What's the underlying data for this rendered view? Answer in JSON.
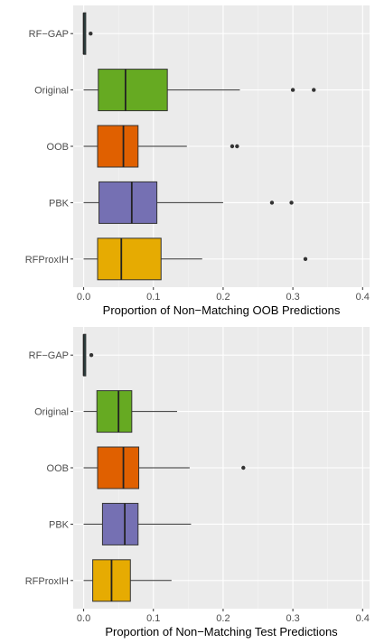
{
  "colors": {
    "panel_bg": "#ebebeb",
    "grid_major": "#ffffff",
    "grid_minor": "#f5f5f5",
    "whisker": "#333333",
    "outlier": "#333333",
    "box_outline": "#333333"
  },
  "chart_data": [
    {
      "type": "boxplot",
      "orientation": "horizontal",
      "xlabel": "Proportion of Non−Matching OOB Predictions",
      "xlim": [
        -0.015,
        0.41
      ],
      "xticks": [
        0,
        0.1,
        0.2,
        0.3,
        0.4
      ],
      "xtick_labels": [
        "0.0",
        "0.1",
        "0.2",
        "0.3",
        "0.4"
      ],
      "grid": true,
      "legend": "none",
      "series": [
        {
          "name": "RF−GAP",
          "color": "#2f4f4f",
          "whisker_low": 0.0,
          "q1": 0.0,
          "median": 0.0,
          "q3": 0.003,
          "whisker_high": 0.003,
          "outliers": [
            0.01
          ]
        },
        {
          "name": "Original",
          "color": "#66aa22",
          "whisker_low": 0.0,
          "q1": 0.021,
          "median": 0.06,
          "q3": 0.12,
          "whisker_high": 0.224,
          "outliers": [
            0.3,
            0.33
          ]
        },
        {
          "name": "OOB",
          "color": "#e06000",
          "whisker_low": 0.0,
          "q1": 0.02,
          "median": 0.057,
          "q3": 0.078,
          "whisker_high": 0.148,
          "outliers": [
            0.213,
            0.22
          ]
        },
        {
          "name": "PBK",
          "color": "#7570b3",
          "whisker_low": 0.0,
          "q1": 0.022,
          "median": 0.069,
          "q3": 0.105,
          "whisker_high": 0.2,
          "outliers": [
            0.27,
            0.298
          ]
        },
        {
          "name": "RFProxIH",
          "color": "#e6ab02",
          "whisker_low": 0.0,
          "q1": 0.02,
          "median": 0.054,
          "q3": 0.111,
          "whisker_high": 0.17,
          "outliers": [
            0.318
          ]
        }
      ]
    },
    {
      "type": "boxplot",
      "orientation": "horizontal",
      "xlabel": "Proportion of Non−Matching Test Predictions",
      "xlim": [
        -0.015,
        0.41
      ],
      "xticks": [
        0,
        0.1,
        0.2,
        0.3,
        0.4
      ],
      "xtick_labels": [
        "0.0",
        "0.1",
        "0.2",
        "0.3",
        "0.4"
      ],
      "grid": true,
      "legend": "none",
      "series": [
        {
          "name": "RF−GAP",
          "color": "#2f4f4f",
          "whisker_low": 0.0,
          "q1": 0.0,
          "median": 0.0,
          "q3": 0.003,
          "whisker_high": 0.003,
          "outliers": [
            0.011
          ]
        },
        {
          "name": "Original",
          "color": "#66aa22",
          "whisker_low": 0.0,
          "q1": 0.019,
          "median": 0.05,
          "q3": 0.069,
          "whisker_high": 0.134,
          "outliers": []
        },
        {
          "name": "OOB",
          "color": "#e06000",
          "whisker_low": 0.0,
          "q1": 0.02,
          "median": 0.057,
          "q3": 0.079,
          "whisker_high": 0.152,
          "outliers": [
            0.229
          ]
        },
        {
          "name": "PBK",
          "color": "#7570b3",
          "whisker_low": 0.0,
          "q1": 0.027,
          "median": 0.059,
          "q3": 0.078,
          "whisker_high": 0.154,
          "outliers": []
        },
        {
          "name": "RFProxIH",
          "color": "#e6ab02",
          "whisker_low": 0.0,
          "q1": 0.013,
          "median": 0.04,
          "q3": 0.067,
          "whisker_high": 0.126,
          "outliers": []
        }
      ]
    }
  ]
}
